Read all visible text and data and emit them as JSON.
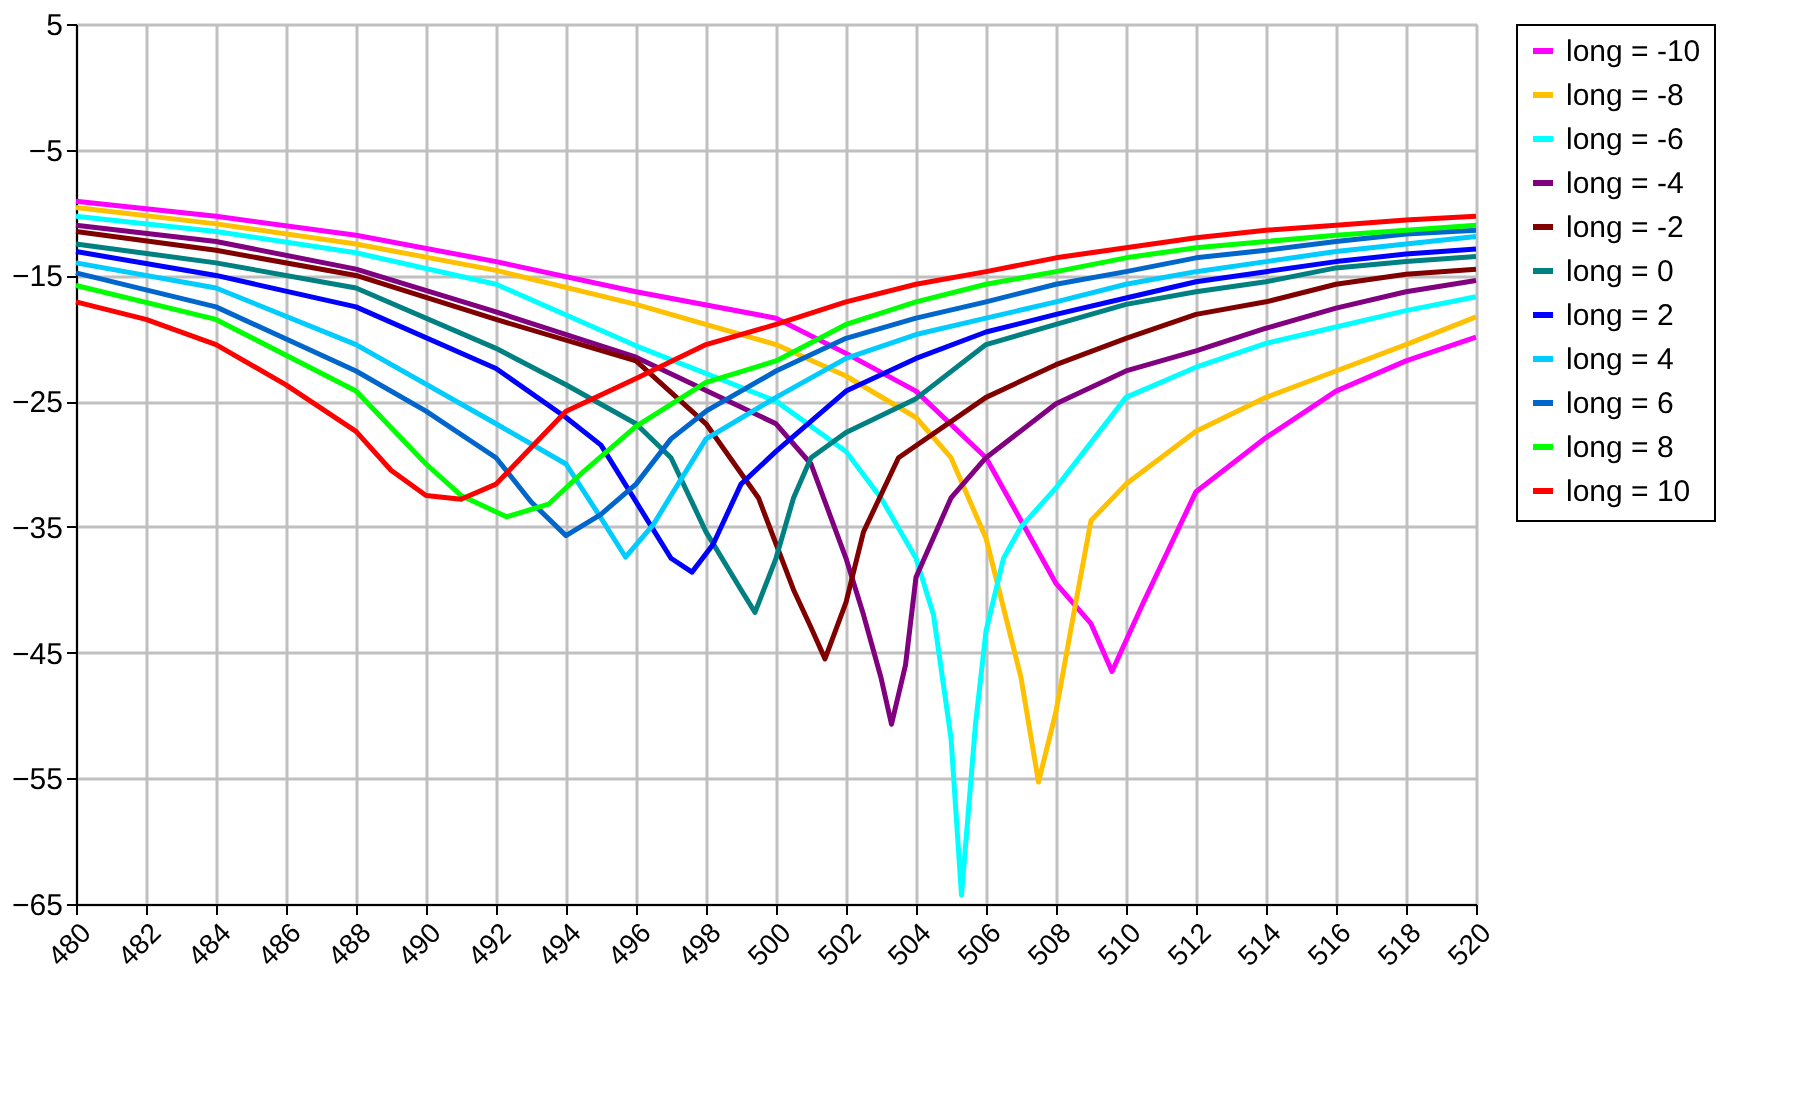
{
  "chart_data": {
    "type": "line",
    "xlim": [
      480,
      520
    ],
    "xticks": [
      480,
      482,
      484,
      486,
      488,
      490,
      492,
      494,
      496,
      498,
      500,
      502,
      504,
      506,
      508,
      510,
      512,
      514,
      516,
      518,
      520
    ],
    "ylim": [
      -65,
      5
    ],
    "yticks": [
      -65,
      -55,
      -45,
      -35,
      -25,
      -15,
      -5,
      5
    ],
    "grid": true,
    "legend": "right",
    "marker": "none",
    "line_style": "solid",
    "series": [
      {
        "name": "long = -10",
        "color": "#ff00ff",
        "x": [
          480,
          484,
          488,
          492,
          496,
          500,
          502,
          504,
          506,
          508,
          509,
          509.6,
          510.5,
          512,
          514,
          516,
          518,
          520
        ],
        "values": [
          -9.1,
          -10.3,
          -11.8,
          -13.9,
          -16.3,
          -18.4,
          -21.2,
          -24.2,
          -29.5,
          -39.5,
          -42.7,
          -46.5,
          -41,
          -32.2,
          -27.9,
          -24.2,
          -21.8,
          -19.9
        ]
      },
      {
        "name": "long = -8",
        "color": "#ffc000",
        "x": [
          480,
          484,
          488,
          492,
          496,
          500,
          502,
          504,
          505,
          506,
          507,
          507.5,
          508,
          508.5,
          509,
          510,
          512,
          514,
          516,
          518,
          520
        ],
        "values": [
          -9.6,
          -10.9,
          -12.5,
          -14.6,
          -17.3,
          -20.5,
          -23,
          -26.3,
          -29.5,
          -35.9,
          -47,
          -55.3,
          -49.7,
          -42,
          -34.5,
          -31.6,
          -27.4,
          -24.7,
          -22.6,
          -20.5,
          -18.3
        ]
      },
      {
        "name": "long = -6",
        "color": "#00ffff",
        "x": [
          480,
          484,
          488,
          492,
          496,
          500,
          502,
          503,
          504,
          504.5,
          505,
          505.3,
          505.7,
          506,
          506.5,
          507,
          508,
          510,
          512,
          514,
          516,
          518,
          520
        ],
        "values": [
          -10.3,
          -11.5,
          -13.2,
          -15.7,
          -20.6,
          -25,
          -29,
          -32.7,
          -37.5,
          -42,
          -51.8,
          -64.3,
          -50.7,
          -43.3,
          -37.5,
          -35,
          -31.9,
          -24.7,
          -22.3,
          -20.4,
          -19.1,
          -17.8,
          -16.7
        ]
      },
      {
        "name": "long = -4",
        "color": "#800080",
        "x": [
          480,
          484,
          488,
          492,
          496,
          500,
          501,
          502,
          502.5,
          503,
          503.3,
          503.7,
          504,
          505,
          506,
          508,
          510,
          512,
          514,
          516,
          518,
          520
        ],
        "values": [
          -11,
          -12.3,
          -14.5,
          -17.9,
          -21.5,
          -26.8,
          -30,
          -37.5,
          -42,
          -47,
          -50.7,
          -46,
          -39,
          -32.7,
          -29.5,
          -25.2,
          -22.6,
          -21,
          -19.2,
          -17.6,
          -16.3,
          -15.4
        ]
      },
      {
        "name": "long = -2",
        "color": "#800000",
        "x": [
          480,
          484,
          488,
          492,
          496,
          498,
          499.5,
          500.5,
          501,
          501.4,
          502,
          502.5,
          503.5,
          506,
          508,
          510,
          512,
          514,
          516,
          518,
          520
        ],
        "values": [
          -11.5,
          -13,
          -15,
          -18.5,
          -21.8,
          -26.8,
          -32.7,
          -40,
          -43,
          -45.5,
          -41,
          -35.4,
          -29.5,
          -24.7,
          -22.1,
          -20,
          -18.1,
          -17.1,
          -15.7,
          -14.9,
          -14.5
        ]
      },
      {
        "name": "long = 0",
        "color": "#008080",
        "x": [
          480,
          484,
          488,
          492,
          494,
          496,
          497,
          498,
          499,
          499.4,
          500,
          500.5,
          501,
          502,
          504,
          506,
          508,
          510,
          512,
          514,
          516,
          518,
          520
        ],
        "values": [
          -12.5,
          -14,
          -16,
          -20.8,
          -23.7,
          -26.8,
          -29.5,
          -35.4,
          -40,
          -41.8,
          -37.5,
          -32.7,
          -29.5,
          -27.5,
          -24.8,
          -20.5,
          -18.9,
          -17.3,
          -16.3,
          -15.5,
          -14.4,
          -13.9,
          -13.5
        ]
      },
      {
        "name": "long = 2",
        "color": "#0000ff",
        "x": [
          480,
          484,
          488,
          492,
          494,
          495,
          496.4,
          497,
          497.6,
          498.2,
          499,
          500,
          502,
          504,
          506,
          508,
          510,
          512,
          514,
          516,
          518,
          520
        ],
        "values": [
          -13.1,
          -15,
          -17.5,
          -22.4,
          -26.3,
          -28.5,
          -34.8,
          -37.5,
          -38.6,
          -36.4,
          -31.6,
          -29,
          -24.2,
          -21.6,
          -19.5,
          -18.1,
          -16.8,
          -15.5,
          -14.7,
          -13.9,
          -13.3,
          -12.9
        ]
      },
      {
        "name": "long = 4",
        "color": "#00ccff",
        "x": [
          480,
          484,
          488,
          492,
          494,
          495,
          495.7,
          496.5,
          497,
          498,
          500,
          502,
          504,
          506,
          508,
          510,
          512,
          514,
          516,
          518,
          520
        ],
        "values": [
          -14,
          -16,
          -20.5,
          -26.8,
          -30,
          -34.3,
          -37.4,
          -34.8,
          -32.5,
          -28,
          -24.7,
          -21.6,
          -19.7,
          -18.4,
          -17.1,
          -15.7,
          -14.7,
          -13.9,
          -13.1,
          -12.5,
          -11.9
        ]
      },
      {
        "name": "long = 6",
        "color": "#0066cc",
        "x": [
          480,
          484,
          488,
          490,
          492,
          493,
          494,
          495,
          496,
          497,
          498,
          500,
          502,
          504,
          506,
          508,
          510,
          512,
          514,
          516,
          518,
          520
        ],
        "values": [
          -14.8,
          -17.5,
          -22.6,
          -25.8,
          -29.5,
          -33,
          -35.7,
          -34,
          -31.6,
          -28,
          -25.8,
          -22.6,
          -20,
          -18.4,
          -17.1,
          -15.7,
          -14.7,
          -13.6,
          -13,
          -12.3,
          -11.7,
          -11.4
        ]
      },
      {
        "name": "long = 8",
        "color": "#00ff00",
        "x": [
          480,
          484,
          488,
          490,
          491,
          492.3,
          493.5,
          494.5,
          496,
          498,
          500,
          502,
          504,
          506,
          508,
          510,
          512,
          514,
          516,
          518,
          520
        ],
        "values": [
          -15.8,
          -18.5,
          -24.2,
          -30,
          -32.5,
          -34.2,
          -33.2,
          -30.6,
          -27,
          -23.5,
          -21.8,
          -18.9,
          -17.1,
          -15.7,
          -14.7,
          -13.6,
          -12.8,
          -12.3,
          -11.8,
          -11.4,
          -11
        ]
      },
      {
        "name": "long = 10",
        "color": "#ff0000",
        "x": [
          480,
          482,
          484,
          486,
          488,
          489,
          490,
          491,
          492,
          494,
          496,
          498,
          500,
          502,
          504,
          506,
          508,
          510,
          512,
          514,
          516,
          518,
          520
        ],
        "values": [
          -17.1,
          -18.5,
          -20.5,
          -23.7,
          -27.4,
          -30.5,
          -32.5,
          -32.8,
          -31.6,
          -25.8,
          -23.2,
          -20.5,
          -18.9,
          -17.1,
          -15.7,
          -14.7,
          -13.6,
          -12.8,
          -12,
          -11.4,
          -11,
          -10.6,
          -10.3
        ]
      }
    ]
  }
}
